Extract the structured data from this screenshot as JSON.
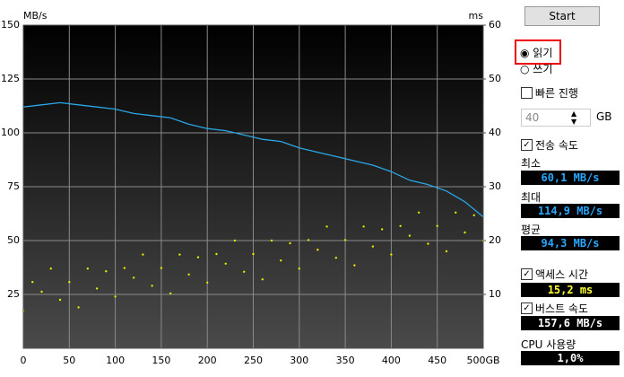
{
  "chart_data": {
    "type": "line",
    "y_label": "MB/s",
    "y2_label": "ms",
    "xlim": [
      0,
      500
    ],
    "xticks": [
      0,
      50,
      100,
      150,
      200,
      250,
      300,
      350,
      400,
      450,
      {
        "value": 500,
        "label": "500GB"
      }
    ],
    "ylim": [
      0,
      150
    ],
    "yticks": [
      25,
      50,
      75,
      100,
      125,
      150
    ],
    "y2lim": [
      0,
      60
    ],
    "y2ticks": [
      10,
      20,
      30,
      40,
      50,
      60
    ],
    "grid": true,
    "series": [
      {
        "type": "line",
        "color": "#2aa6e6",
        "x": [
          0,
          20,
          40,
          60,
          80,
          100,
          120,
          140,
          160,
          180,
          200,
          220,
          240,
          260,
          280,
          300,
          320,
          340,
          360,
          380,
          400,
          420,
          440,
          460,
          480,
          500
        ],
        "values": [
          112,
          113,
          114,
          113,
          112,
          111,
          109,
          108,
          107,
          104,
          102,
          101,
          99,
          97,
          96,
          93,
          91,
          89,
          87,
          85,
          82,
          78,
          76,
          73,
          68,
          61
        ]
      },
      {
        "type": "scatter",
        "axis": "y2",
        "color": "#e8e800",
        "x": [
          0,
          10,
          20,
          30,
          40,
          50,
          60,
          70,
          80,
          90,
          100,
          110,
          120,
          130,
          140,
          150,
          160,
          170,
          180,
          190,
          200,
          210,
          220,
          230,
          240,
          250,
          260,
          270,
          280,
          290,
          300,
          310,
          320,
          330,
          340,
          350,
          360,
          370,
          380,
          390,
          400,
          410,
          420,
          430,
          440,
          450,
          460,
          470,
          480,
          490,
          500
        ],
        "values": [
          7,
          12.3,
          10.5,
          14.8,
          9,
          12.3,
          7.6,
          14.8,
          11.1,
          14.3,
          9.6,
          14.9,
          13.1,
          17.4,
          11.6,
          14.9,
          10.2,
          17.4,
          13.7,
          16.9,
          12.2,
          17.5,
          15.7,
          20,
          14.2,
          17.5,
          12.8,
          20,
          16.3,
          19.5,
          14.8,
          20.1,
          18.3,
          22.6,
          16.8,
          20.1,
          15.4,
          22.6,
          18.9,
          22.1,
          17.4,
          22.7,
          20.9,
          25.2,
          19.4,
          22.7,
          18,
          25.2,
          21.5,
          24.7,
          20
        ]
      }
    ]
  },
  "panel": {
    "start": "Start",
    "read": "읽기",
    "write": "쓰기",
    "quick": "빠른 진행",
    "size": "40",
    "size_unit": "GB",
    "transfer": "전송 속도",
    "min_label": "최소",
    "min": "60,1 MB/s",
    "max_label": "최대",
    "max": "114,9 MB/s",
    "avg_label": "평균",
    "avg": "94,3 MB/s",
    "access": "액세스 시간",
    "access_value": "15,2 ms",
    "burst": "버스트 속도",
    "burst_value": "157,6 MB/s",
    "cpu": "CPU 사용량",
    "cpu_value": "1,0%"
  }
}
